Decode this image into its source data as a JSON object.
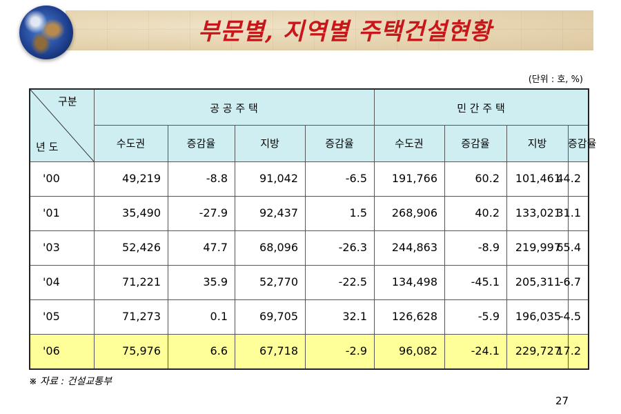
{
  "title": "부문별, 지역별 주택건설현황",
  "unit": "(단위 : 호, %)",
  "source": "※ 자료 : 건설교통부",
  "page_number": "27",
  "header": {
    "corner_top": "구분",
    "corner_bottom": "년 도",
    "group_public": "공 공 주 택",
    "group_private": "민 간 주 택",
    "columns": [
      "수도권",
      "증감율",
      "지방",
      "증감율",
      "수도권",
      "증감율",
      "지방",
      "증감율"
    ]
  },
  "rows": [
    {
      "year": "'00",
      "values": [
        "49,219",
        "-8.8",
        "91,042",
        "-6.5",
        "191,766",
        "60.2",
        "101,461",
        "44.2"
      ]
    },
    {
      "year": "'01",
      "values": [
        "35,490",
        "-27.9",
        "92,437",
        "1.5",
        "268,906",
        "40.2",
        "133,021",
        "31.1"
      ]
    },
    {
      "year": "'03",
      "values": [
        "52,426",
        "47.7",
        "68,096",
        "-26.3",
        "244,863",
        "-8.9",
        "219,997",
        "65.4"
      ]
    },
    {
      "year": "'04",
      "values": [
        "71,221",
        "35.9",
        "52,770",
        "-22.5",
        "134,498",
        "-45.1",
        "205,311",
        "-6.7"
      ]
    },
    {
      "year": "'05",
      "values": [
        "71,273",
        "0.1",
        "69,705",
        "32.1",
        "126,628",
        "-5.9",
        "196,035",
        "-4.5"
      ]
    },
    {
      "year": "'06",
      "values": [
        "75,976",
        "6.6",
        "67,718",
        "-2.9",
        "96,082",
        "-24.1",
        "229,727",
        "17.2"
      ],
      "highlight": true
    }
  ],
  "colors": {
    "title": "#c8171a",
    "header_bg": "#cfeef2",
    "highlight_row": "#ffff99"
  },
  "icons": {
    "banner_image": "globe-icon"
  }
}
